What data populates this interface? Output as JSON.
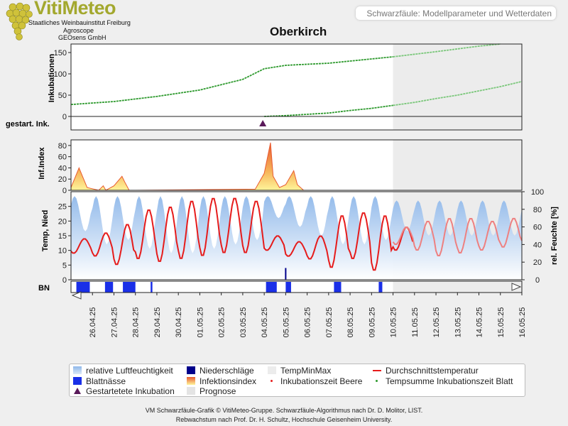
{
  "brand": {
    "name": "VitiMeteo",
    "line1": "Staatliches Weinbauinstitut Freiburg",
    "line2": "Agroscope",
    "line3": "GEOsens GmbH"
  },
  "header": {
    "subtitle": "Schwarzfäule: Modellparameter und Wetterdaten"
  },
  "colors": {
    "incubation_line": "#2e9a2e",
    "incubation_forecast": "#7ac77a",
    "humidity": "#8fb8ea",
    "temperature": "#e61b1b",
    "temperature_forecast": "#ee8080",
    "leaf_wetness": "#1a2fe8",
    "precipitation": "#00008b",
    "infection_index_top": "#e85a30",
    "infection_index_bottom": "#fff59a",
    "forecast_shade": "#ececec",
    "incubation_marker": "#5a1a5a"
  },
  "chart_data": {
    "type": "line",
    "title": "Oberkirch",
    "x_dates": [
      "26.04.25",
      "27.04.25",
      "28.04.25",
      "29.04.25",
      "30.04.25",
      "01.05.25",
      "02.05.25",
      "03.05.25",
      "04.05.25",
      "05.05.25",
      "06.05.25",
      "07.05.25",
      "08.05.25",
      "09.05.25",
      "10.05.25",
      "11.05.25",
      "12.05.25",
      "13.05.25",
      "14.05.25",
      "15.05.25",
      "16.05.25"
    ],
    "x_range": [
      "25.04.25",
      "16.05.25"
    ],
    "forecast_start": "10.05.25",
    "panels": [
      {
        "name": "Inkubationen",
        "ylabel": "Inkubationen",
        "ylim": [
          0,
          170
        ],
        "yticks": [
          0,
          50,
          100,
          150
        ],
        "series": [
          {
            "name": "Tempsumme Inkubationszeit Blatt",
            "x": [
              "25.04.25",
              "27.04.25",
              "29.04.25",
              "01.05.25",
              "03.05.25",
              "04.05.25",
              "05.05.25",
              "07.05.25",
              "09.05.25",
              "10.05.25",
              "12.05.25",
              "14.05.25",
              "15.05.25"
            ],
            "values": [
              28,
              35,
              47,
              62,
              87,
              112,
              120,
              125,
              135,
              140,
              152,
              165,
              172
            ]
          },
          {
            "name": "Inkubationszeit Beere",
            "x": [
              "04.05.25",
              "05.05.25",
              "06.05.25",
              "07.05.25",
              "08.05.25",
              "09.05.25",
              "10.05.25",
              "11.05.25",
              "12.05.25",
              "13.05.25",
              "14.05.25",
              "15.05.25",
              "16.05.25"
            ],
            "values": [
              0,
              2,
              5,
              8,
              14,
              19,
              26,
              33,
              42,
              50,
              60,
              70,
              82
            ]
          }
        ]
      },
      {
        "name": "gestart. Ink.",
        "ylabel": "gestart. Ink.",
        "series": [
          {
            "name": "Gestartetete Inkubation",
            "x": [
              "04.05.25"
            ],
            "values": [
              1
            ]
          }
        ]
      },
      {
        "name": "Inf.Index",
        "ylabel": "Inf.Index",
        "ylim": [
          0,
          90
        ],
        "yticks": [
          0,
          20,
          40,
          60,
          80
        ],
        "series": [
          {
            "name": "Infektionsindex",
            "x": [
              "25.04.25",
              "25.04.25 09h",
              "25.04.25 18h",
              "26.04.25 07h",
              "26.04.25 12h",
              "26.04.25 15h",
              "27.04.25",
              "27.04.25 09h",
              "27.04.25 12h",
              "27.04.25 17h",
              "28.04.25",
              "03.05.25 14h",
              "04.05.25",
              "04.05.25 07h",
              "04.05.25 10h",
              "04.05.25 17h",
              "05.05.25",
              "05.05.25 09h",
              "05.05.25 13h",
              "05.05.25 20h",
              "06.05.25"
            ],
            "values": [
              5,
              40,
              5,
              0,
              8,
              0,
              8,
              25,
              15,
              0,
              0,
              2,
              30,
              85,
              25,
              5,
              10,
              35,
              10,
              0,
              0
            ]
          }
        ]
      },
      {
        "name": "Wetter",
        "ylabel": "Temp, Nied",
        "ylim": [
          0,
          30
        ],
        "yticks": [
          0,
          5,
          10,
          15,
          20,
          25
        ],
        "y2label": "rel. Feuchte [%]",
        "y2lim": [
          0,
          100
        ],
        "y2ticks": [
          0,
          20,
          40,
          60,
          80,
          100
        ],
        "series": [
          {
            "name": "Durchschnittstemperatur",
            "x": [
              "25.04.25",
              "26.04.25",
              "27.04.25",
              "28.04.25",
              "29.04.25",
              "30.04.25",
              "01.05.25",
              "02.05.25",
              "03.05.25",
              "04.05.25",
              "05.05.25",
              "06.05.25",
              "07.05.25",
              "08.05.25",
              "09.05.25",
              "10.05.25"
            ],
            "day_min": [
              9,
              8,
              5,
              7,
              6,
              7,
              8,
              9,
              9,
              10,
              8,
              7,
              4,
              7,
              3,
              10
            ],
            "day_max": [
              14,
              16,
              19,
              24,
              25,
              27,
              28,
              28,
              27,
              15,
              13,
              15,
              22,
              23,
              22,
              18
            ]
          },
          {
            "name": "Durchschnittstemperatur (Prognose)",
            "x": [
              "10.05.25",
              "11.05.25",
              "12.05.25",
              "13.05.25",
              "14.05.25",
              "15.05.25",
              "16.05.25"
            ],
            "day_min": [
              12,
              10,
              8,
              9,
              10,
              11,
              12
            ],
            "day_max": [
              18,
              20,
              21,
              21,
              20,
              21,
              21
            ]
          },
          {
            "name": "relative Luftfeuchtigkeit",
            "day_min_pct": [
              55,
              40,
              45,
              35,
              30,
              30,
              35,
              40,
              45,
              70,
              60,
              50,
              40,
              40,
              45,
              55,
              50,
              50,
              50,
              50,
              50
            ],
            "day_max_pct": [
              95,
              95,
              95,
              95,
              95,
              95,
              95,
              95,
              95,
              95,
              95,
              95,
              95,
              95,
              95,
              90,
              90,
              90,
              90,
              90,
              90
            ]
          },
          {
            "name": "Niederschläge",
            "x": [
              "05.05.25"
            ],
            "values": [
              4
            ]
          }
        ]
      },
      {
        "name": "BN",
        "ylabel": "BN",
        "series": [
          {
            "name": "Blattnässe",
            "intervals": [
              [
                "25.04.25 06h",
                "25.04.25 21h"
              ],
              [
                "26.04.25 14h",
                "26.04.25 23h"
              ],
              [
                "27.04.25 10h",
                "28.04.25 00h"
              ],
              [
                "28.04.25 17h",
                "28.04.25 19h"
              ],
              [
                "04.05.25 02h",
                "04.05.25 14h"
              ],
              [
                "05.05.25 00h",
                "05.05.25 06h"
              ],
              [
                "07.05.25 06h",
                "07.05.25 14h"
              ],
              [
                "09.05.25 08h",
                "09.05.25 12h"
              ]
            ]
          }
        ]
      }
    ],
    "legend": [
      {
        "label": "relative Luftfeuchtigkeit",
        "kind": "humidity"
      },
      {
        "label": "Niederschläge",
        "kind": "precip"
      },
      {
        "label": "TempMinMax",
        "kind": "tempminmax"
      },
      {
        "label": "Durchschnittstemperatur",
        "kind": "line"
      },
      {
        "label": "Blattnässe",
        "kind": "leaf"
      },
      {
        "label": "Infektionsindex",
        "kind": "index"
      },
      {
        "label": "Inkubationszeit Beere",
        "kind": "dot"
      },
      {
        "label": "Tempsumme Inkubationszeit Blatt",
        "kind": "dot"
      },
      {
        "label": "Gestartetete Inkubation",
        "kind": "triangle"
      },
      {
        "label": "Prognose",
        "kind": "forecast"
      }
    ],
    "grid": false,
    "legend_position": "bottom"
  },
  "footer": {
    "line1": "VM Schwarzfäule-Grafik © VitiMeteo-Gruppe. Schwarzfäule-Algorithmus nach Dr. D. Molitor, LIST.",
    "line2": "Rebwachstum nach Prof. Dr. H. Schultz, Hochschule Geisenheim University."
  }
}
